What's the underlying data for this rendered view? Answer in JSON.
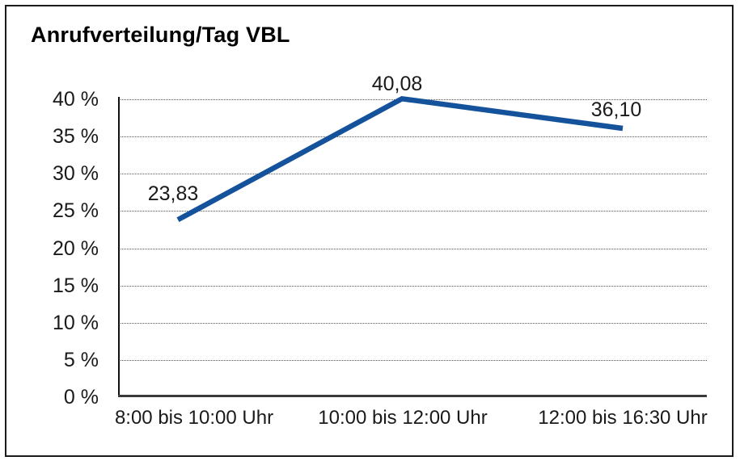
{
  "window": {
    "background_color": "#ffffff",
    "border_color": "#1a1a1a"
  },
  "chart_data": {
    "type": "line",
    "title": "Anrufverteilung/Tag VBL",
    "categories": [
      "8:00 bis 10:00 Uhr",
      "10:00 bis 12:00 Uhr",
      "12:00 bis 16:30 Uhr"
    ],
    "values": [
      23.83,
      40.08,
      36.1
    ],
    "data_labels": [
      "23,83",
      "40,08",
      "36,10"
    ],
    "y_ticks": [
      0,
      5,
      10,
      15,
      20,
      25,
      30,
      35,
      40
    ],
    "y_tick_labels": [
      "0 %",
      "5 %",
      "10 %",
      "15 %",
      "20 %",
      "25 %",
      "30 %",
      "35 %",
      "40 %"
    ],
    "ylim": [
      0,
      40
    ],
    "xlabel": "",
    "ylabel": "",
    "grid": "horizontal-dotted",
    "legend_position": "none",
    "line_color": "#15529C",
    "gridline_color": "#555555",
    "axis_color": "#1a1a1a"
  }
}
